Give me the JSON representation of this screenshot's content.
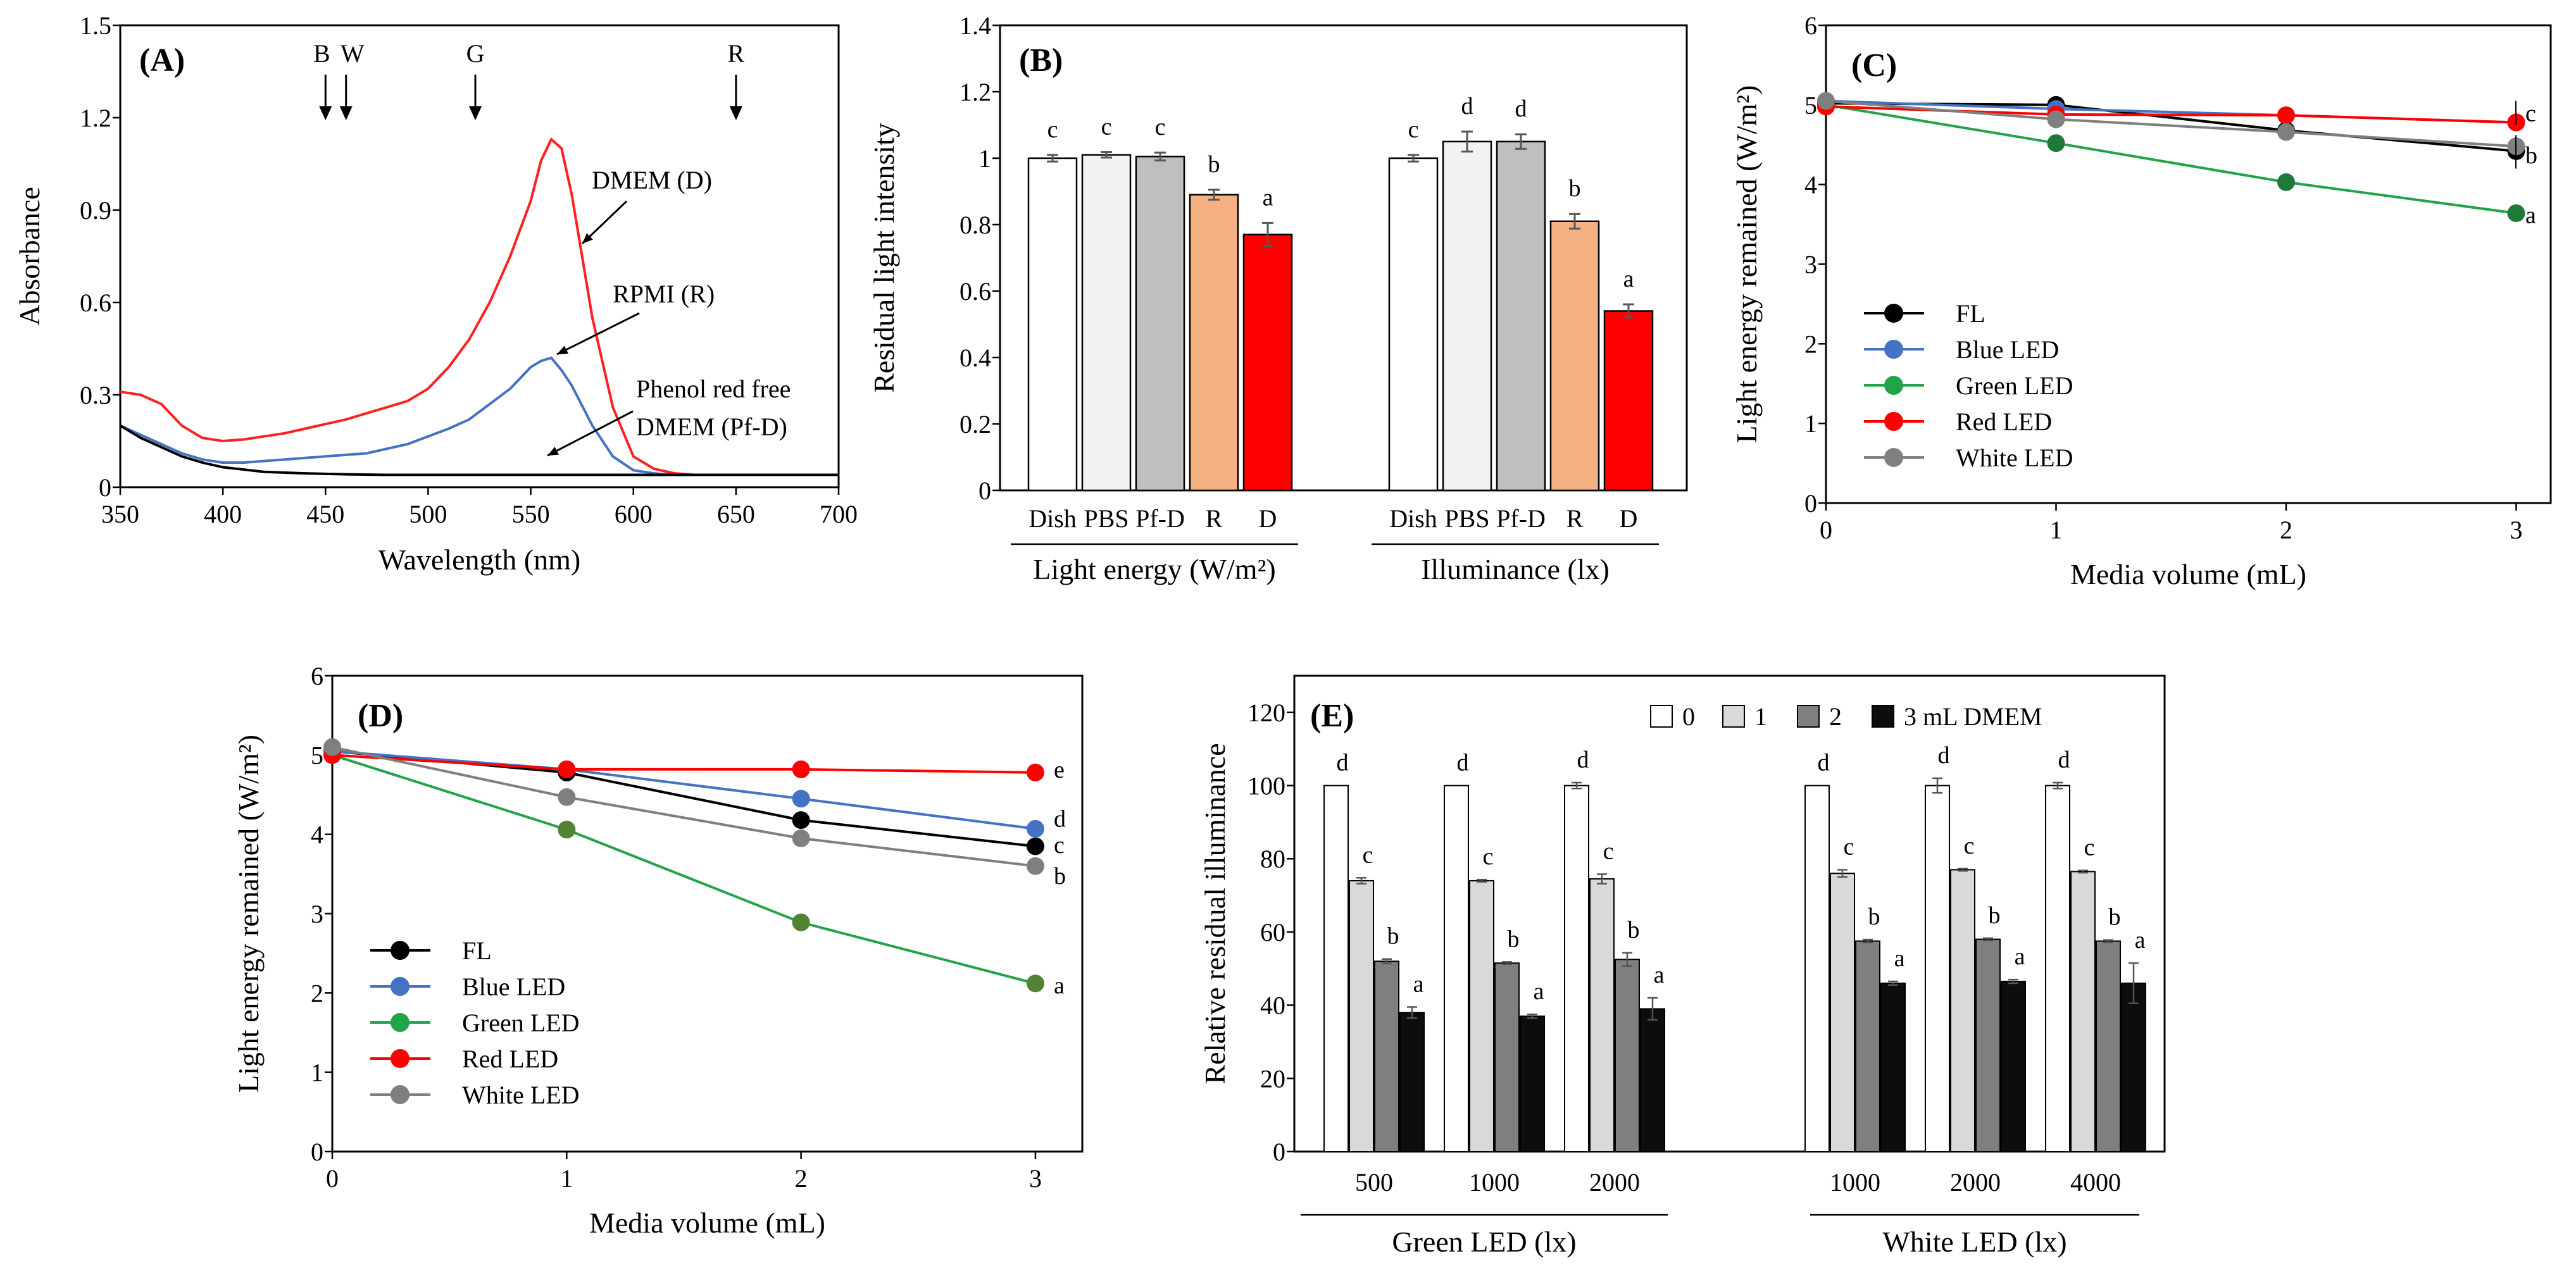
{
  "chart_data": [
    {
      "id": "A",
      "type": "line",
      "panel_label": "(A)",
      "xlabel": "Wavelength (nm)",
      "ylabel": "Absorbance",
      "xlim": [
        350,
        700
      ],
      "ylim": [
        0,
        1.5
      ],
      "xticks": [
        350,
        400,
        450,
        500,
        550,
        600,
        650,
        700
      ],
      "xtick_labels": [
        "350",
        "400",
        "450",
        "500",
        "550",
        "600",
        "650",
        "700"
      ],
      "yticks": [
        0,
        0.3,
        0.6,
        0.9,
        1.2,
        1.5
      ],
      "ytick_labels": [
        "0",
        "0.3",
        "0.6",
        "0.9",
        "1.2",
        "1.5"
      ],
      "series": [
        {
          "name": "DMEM (D)",
          "color": "#ff2020",
          "x": [
            350,
            360,
            370,
            380,
            390,
            400,
            410,
            420,
            430,
            440,
            450,
            460,
            470,
            480,
            490,
            500,
            510,
            520,
            530,
            540,
            550,
            555,
            560,
            565,
            570,
            580,
            590,
            600,
            610,
            620,
            630,
            650,
            700
          ],
          "y": [
            0.31,
            0.3,
            0.27,
            0.2,
            0.16,
            0.15,
            0.155,
            0.165,
            0.175,
            0.19,
            0.205,
            0.22,
            0.24,
            0.26,
            0.28,
            0.32,
            0.39,
            0.48,
            0.6,
            0.75,
            0.93,
            1.06,
            1.13,
            1.1,
            0.95,
            0.55,
            0.26,
            0.1,
            0.06,
            0.045,
            0.04,
            0.04,
            0.04
          ]
        },
        {
          "name": "RPMI (R)",
          "color": "#4472c4",
          "x": [
            350,
            360,
            370,
            380,
            390,
            400,
            410,
            420,
            430,
            440,
            450,
            460,
            470,
            480,
            490,
            500,
            510,
            520,
            530,
            540,
            550,
            555,
            560,
            565,
            570,
            580,
            590,
            600,
            610,
            620,
            650,
            700
          ],
          "y": [
            0.2,
            0.17,
            0.14,
            0.11,
            0.09,
            0.08,
            0.08,
            0.085,
            0.09,
            0.095,
            0.1,
            0.105,
            0.11,
            0.125,
            0.14,
            0.165,
            0.19,
            0.22,
            0.27,
            0.32,
            0.39,
            0.41,
            0.42,
            0.38,
            0.33,
            0.2,
            0.1,
            0.055,
            0.045,
            0.04,
            0.04,
            0.04
          ]
        },
        {
          "name": "Phenol red free DMEM (Pf-D)",
          "color": "#000000",
          "x": [
            350,
            360,
            370,
            380,
            390,
            400,
            420,
            440,
            460,
            480,
            500,
            550,
            600,
            650,
            700
          ],
          "y": [
            0.2,
            0.16,
            0.13,
            0.1,
            0.08,
            0.065,
            0.05,
            0.045,
            0.042,
            0.04,
            0.04,
            0.04,
            0.04,
            0.04,
            0.04
          ]
        }
      ],
      "series_labels": [
        "DMEM (D)",
        "RPMI (R)",
        "Phenol red free",
        "DMEM (Pf-D)"
      ],
      "markers": [
        {
          "label": "B",
          "x": 450
        },
        {
          "label": "W",
          "x": 460
        },
        {
          "label": "G",
          "x": 523
        },
        {
          "label": "R",
          "x": 650
        }
      ]
    },
    {
      "id": "B",
      "type": "bar",
      "panel_label": "(B)",
      "ylabel": "Residual light intensity",
      "ylim": [
        0,
        1.4
      ],
      "yticks": [
        0,
        0.2,
        0.4,
        0.6,
        0.8,
        1,
        1.2,
        1.4
      ],
      "ytick_labels": [
        "0",
        "0.2",
        "0.4",
        "0.6",
        "0.8",
        "1",
        "1.2",
        "1.4"
      ],
      "categories": [
        "Dish",
        "PBS",
        "Pf-D",
        "R",
        "D"
      ],
      "bar_colors": [
        "#ffffff",
        "#f2f2f2",
        "#bfbfbf",
        "#f4b183",
        "#ff0000"
      ],
      "groups": [
        {
          "label": "Light energy (W/m²)",
          "values": [
            1.0,
            1.01,
            1.005,
            0.89,
            0.77
          ],
          "errors": [
            0.01,
            0.008,
            0.012,
            0.015,
            0.035
          ],
          "letters": [
            "c",
            "c",
            "c",
            "b",
            "a"
          ]
        },
        {
          "label": "Illuminance (lx)",
          "values": [
            1.0,
            1.05,
            1.05,
            0.81,
            0.54
          ],
          "errors": [
            0.01,
            0.03,
            0.022,
            0.022,
            0.02
          ],
          "letters": [
            "c",
            "d",
            "d",
            "b",
            "a"
          ]
        }
      ]
    },
    {
      "id": "C",
      "type": "line",
      "panel_label": "(C)",
      "xlabel": "Media volume (mL)",
      "ylabel": "Light energy remained (W/m²)",
      "xlim": [
        0,
        3.15
      ],
      "ylim": [
        0,
        6
      ],
      "xticks": [
        0,
        1,
        2,
        3
      ],
      "xtick_labels": [
        "0",
        "1",
        "2",
        "3"
      ],
      "yticks": [
        0,
        1,
        2,
        3,
        4,
        5,
        6
      ],
      "ytick_labels": [
        "0",
        "1",
        "2",
        "3",
        "4",
        "5",
        "6"
      ],
      "x": [
        0,
        1,
        2,
        3
      ],
      "series": [
        {
          "name": "FL",
          "color": "#000000",
          "values": [
            5.02,
            5.0,
            4.68,
            4.42
          ]
        },
        {
          "name": "Blue LED",
          "color": "#4472c4",
          "values": [
            5.05,
            4.95,
            4.87,
            4.78
          ]
        },
        {
          "name": "Green LED",
          "color": "#21a34a",
          "marker_color": "#1f7a3a",
          "values": [
            5.0,
            4.52,
            4.03,
            3.64
          ]
        },
        {
          "name": "Red LED",
          "color": "#ff0000",
          "values": [
            4.98,
            4.88,
            4.87,
            4.78
          ]
        },
        {
          "name": "White LED",
          "color": "#7f7f7f",
          "values": [
            5.05,
            4.82,
            4.66,
            4.48
          ]
        }
      ],
      "letters": [
        {
          "text": "c",
          "y": 4.9
        },
        {
          "text": "b",
          "y": 4.37
        },
        {
          "text": "a",
          "y": 3.62
        }
      ]
    },
    {
      "id": "D",
      "type": "line",
      "panel_label": "(D)",
      "xlabel": "Media volume (mL)",
      "ylabel": "Light energy remained (W/m²)",
      "xlim": [
        0,
        3.2
      ],
      "ylim": [
        0,
        6
      ],
      "xticks": [
        0,
        1,
        2,
        3
      ],
      "xtick_labels": [
        "0",
        "1",
        "2",
        "3"
      ],
      "yticks": [
        0,
        1,
        2,
        3,
        4,
        5,
        6
      ],
      "ytick_labels": [
        "0",
        "1",
        "2",
        "3",
        "4",
        "5",
        "6"
      ],
      "x": [
        0,
        1,
        2,
        3
      ],
      "series": [
        {
          "name": "FL",
          "color": "#000000",
          "values": [
            5.05,
            4.78,
            4.18,
            3.85
          ]
        },
        {
          "name": "Blue LED",
          "color": "#4472c4",
          "values": [
            5.05,
            4.82,
            4.45,
            4.07
          ]
        },
        {
          "name": "Green LED",
          "color": "#21a34a",
          "marker_color": "#548235",
          "values": [
            5.0,
            4.06,
            2.89,
            2.12
          ]
        },
        {
          "name": "Red LED",
          "color": "#ff0000",
          "values": [
            5.0,
            4.82,
            4.82,
            4.78
          ]
        },
        {
          "name": "White LED",
          "color": "#7f7f7f",
          "values": [
            5.1,
            4.47,
            3.95,
            3.6
          ]
        }
      ],
      "letters": [
        {
          "text": "e",
          "y": 4.82
        },
        {
          "text": "d",
          "y": 4.2
        },
        {
          "text": "c",
          "y": 3.87
        },
        {
          "text": "b",
          "y": 3.48
        },
        {
          "text": "a",
          "y": 2.1
        }
      ]
    },
    {
      "id": "E",
      "type": "bar",
      "panel_label": "(E)",
      "ylabel": "Relative residual illuminance",
      "ylim": [
        0,
        130
      ],
      "yticks": [
        0,
        20,
        40,
        60,
        80,
        100,
        120
      ],
      "ytick_labels": [
        "0",
        "20",
        "40",
        "60",
        "80",
        "100",
        "120"
      ],
      "legend": [
        "0",
        "1",
        "2",
        "3 mL DMEM"
      ],
      "bar_colors": [
        "#ffffff",
        "#d9d9d9",
        "#7f7f7f",
        "#0d0d0d"
      ],
      "letters": [
        "d",
        "c",
        "b",
        "a"
      ],
      "groups": [
        {
          "label": "500",
          "values": [
            100,
            74,
            52,
            38
          ],
          "errors": [
            0,
            0.8,
            0.6,
            1.5
          ]
        },
        {
          "label": "1000",
          "values": [
            100,
            74,
            51.5,
            37
          ],
          "errors": [
            0,
            0.3,
            0.3,
            0.5
          ]
        },
        {
          "label": "2000",
          "values": [
            100,
            74.5,
            52.5,
            39
          ],
          "errors": [
            0.8,
            1.3,
            1.8,
            3.0
          ]
        },
        {
          "label": "1000",
          "values": [
            100,
            76,
            57.5,
            46
          ],
          "errors": [
            0,
            1.0,
            0.4,
            0.5
          ]
        },
        {
          "label": "2000",
          "values": [
            100,
            77,
            58,
            46.5
          ],
          "errors": [
            2.0,
            0.3,
            0.3,
            0.5
          ]
        },
        {
          "label": "4000",
          "values": [
            100,
            76.5,
            57.5,
            46
          ],
          "errors": [
            0.8,
            0.3,
            0.3,
            5.5
          ]
        }
      ],
      "group_labels": [
        "Green LED (lx)",
        "White LED (lx)"
      ]
    }
  ]
}
